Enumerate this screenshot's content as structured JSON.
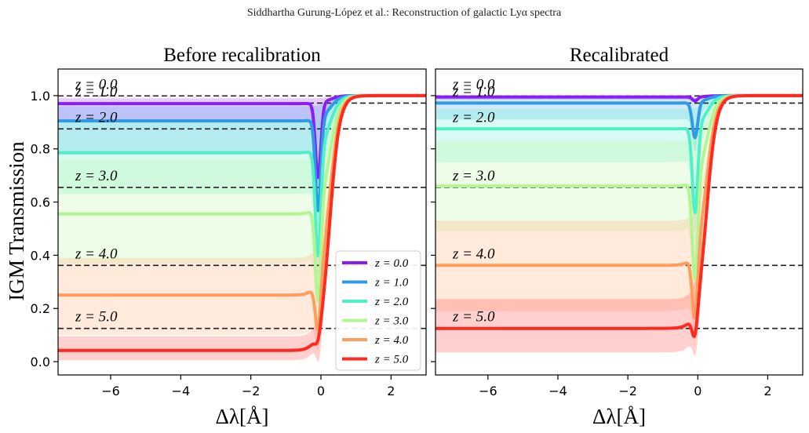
{
  "header": {
    "text": "Siddhartha Gurung-López et al.:  Reconstruction of galactic Lyα spectra"
  },
  "chart_data": [
    {
      "type": "line",
      "title": "Before recalibration",
      "xlabel": "Δλ[Å]",
      "ylabel": "IGM Transmission",
      "xlim": [
        -7.5,
        3.0
      ],
      "ylim": [
        -0.05,
        1.1
      ],
      "xticks": [
        "−6",
        "−4",
        "−2",
        "0",
        "2"
      ],
      "yticks": [
        "0.0",
        "0.2",
        "0.4",
        "0.6",
        "0.8",
        "1.0"
      ],
      "legend_position": "lower-right",
      "series": [
        {
          "name": "z = 0.0",
          "z_label": "z = 0.0",
          "color": "#8b1cf5",
          "plateau": 0.97,
          "dip_min": 0.69,
          "band_low": 0.91,
          "band_high": 0.99,
          "reference": 0.999
        },
        {
          "name": "z = 1.0",
          "z_label": "z = 1.0",
          "color": "#2e9be6",
          "plateau": 0.905,
          "dip_min": 0.56,
          "band_low": 0.79,
          "band_high": 0.96,
          "reference": 0.972
        },
        {
          "name": "z = 2.0",
          "z_label": "z = 2.0",
          "color": "#4ef0c8",
          "plateau": 0.785,
          "dip_min": 0.38,
          "band_low": 0.63,
          "band_high": 0.9,
          "reference": 0.875
        },
        {
          "name": "z = 3.0",
          "z_label": "z = 3.0",
          "color": "#b2f591",
          "plateau": 0.555,
          "dip_min": 0.19,
          "band_low": 0.37,
          "band_high": 0.76,
          "reference": 0.655
        },
        {
          "name": "z = 4.0",
          "z_label": "z = 4.0",
          "color": "#ff9e5c",
          "plateau": 0.25,
          "dip_min": 0.06,
          "band_low": 0.1,
          "band_high": 0.39,
          "reference": 0.362
        },
        {
          "name": "z = 5.0",
          "z_label": "z = 5.0",
          "color": "#ff2a1f",
          "plateau": 0.042,
          "dip_min": 0.0,
          "band_low": 0.005,
          "band_high": 0.095,
          "reference": 0.125
        }
      ]
    },
    {
      "type": "line",
      "title": "Recalibrated",
      "xlabel": "Δλ[Å]",
      "xlim": [
        -7.5,
        3.0
      ],
      "ylim": [
        -0.05,
        1.1
      ],
      "xticks": [
        "−6",
        "−4",
        "−2",
        "0",
        "2"
      ],
      "series": [
        {
          "z_label": "z = 0.0",
          "color": "#8b1cf5",
          "plateau": 0.995,
          "dip_min": 0.98,
          "band_low": 0.985,
          "band_high": 0.998,
          "reference": 0.999
        },
        {
          "z_label": "z = 1.0",
          "color": "#2e9be6",
          "plateau": 0.972,
          "dip_min": 0.84,
          "band_low": 0.91,
          "band_high": 0.99,
          "reference": 0.972
        },
        {
          "z_label": "z = 2.0",
          "color": "#4ef0c8",
          "plateau": 0.875,
          "dip_min": 0.55,
          "band_low": 0.75,
          "band_high": 0.95,
          "reference": 0.875
        },
        {
          "z_label": "z = 3.0",
          "color": "#b2f591",
          "plateau": 0.66,
          "dip_min": 0.28,
          "band_low": 0.49,
          "band_high": 0.83,
          "reference": 0.655
        },
        {
          "z_label": "z = 4.0",
          "color": "#ff9e5c",
          "plateau": 0.362,
          "dip_min": 0.11,
          "band_low": 0.19,
          "band_high": 0.53,
          "reference": 0.362
        },
        {
          "z_label": "z = 5.0",
          "color": "#ff2a1f",
          "plateau": 0.125,
          "dip_min": 0.025,
          "band_low": 0.035,
          "band_high": 0.235,
          "reference": 0.125
        }
      ]
    }
  ]
}
